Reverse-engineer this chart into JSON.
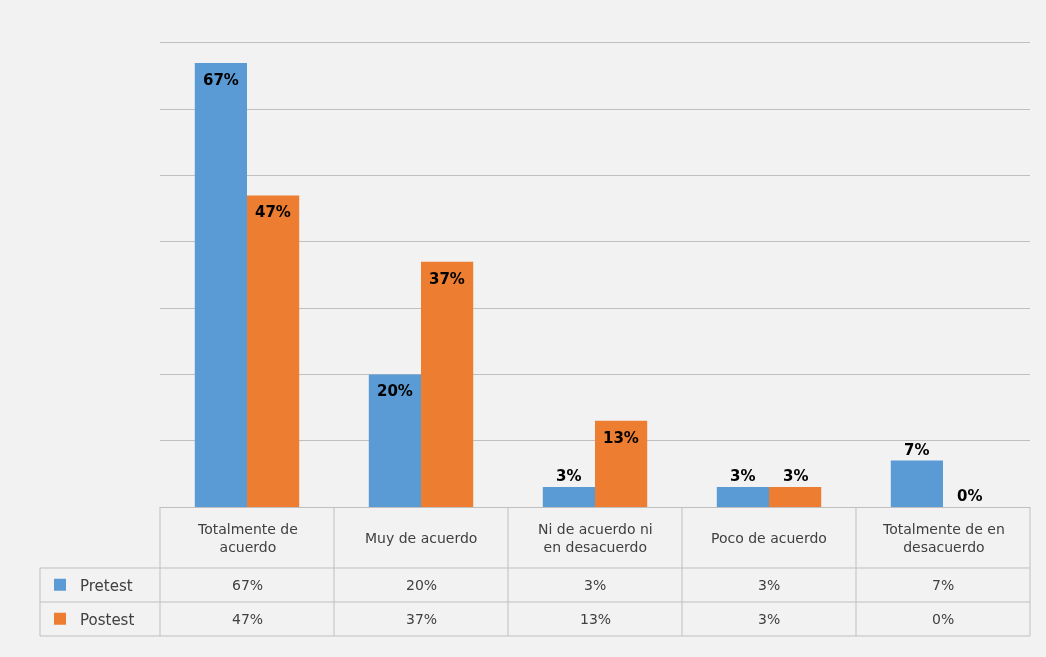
{
  "chart_data": {
    "type": "bar",
    "categories": [
      "Totalmente de acuerdo",
      "Muy de acuerdo",
      "Ni de acuerdo ni en desacuerdo",
      "Poco de acuerdo",
      "Totalmente de en desacuerdo"
    ],
    "series": [
      {
        "name": "Pretest",
        "color": "#5b9bd5",
        "values": [
          67,
          20,
          3,
          3,
          7
        ],
        "value_labels": [
          "67%",
          "20%",
          "3%",
          "3%",
          "7%"
        ]
      },
      {
        "name": "Postest",
        "color": "#ed7d31",
        "values": [
          47,
          37,
          13,
          3,
          0
        ],
        "value_labels": [
          "47%",
          "37%",
          "13%",
          "3%",
          "0%"
        ]
      }
    ],
    "ylim": [
      0,
      70
    ],
    "yticks": [
      {
        "value": 0,
        "label": null
      },
      {
        "value": 10,
        "label": null
      },
      {
        "value": 20,
        "label": null
      },
      {
        "value": 30,
        "label": null
      },
      {
        "value": 40,
        "label": null
      },
      {
        "value": 50,
        "label": null
      },
      {
        "value": 60,
        "label": null
      },
      {
        "value": 70,
        "label": null
      }
    ],
    "grid": "y",
    "legend": "bottom left"
  }
}
